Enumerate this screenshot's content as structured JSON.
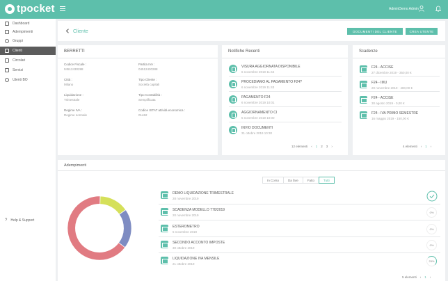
{
  "app": {
    "logo": "tpocket",
    "user": "AdminDemo Admin"
  },
  "sidebar": {
    "items": [
      {
        "label": "Dashboard"
      },
      {
        "label": "Adempimenti"
      },
      {
        "label": "Gruppi"
      },
      {
        "label": "Clienti",
        "active": true
      },
      {
        "label": "Circolari"
      },
      {
        "label": "Servizi"
      },
      {
        "label": "Utenti BO"
      }
    ],
    "help": "Help & Support"
  },
  "header": {
    "title": "Cliente",
    "btn_docs": "DOCUMENTI DEL CLIENTE",
    "btn_user": "CREA UTENTE"
  },
  "client": {
    "name": "BERRETTI",
    "fields": [
      {
        "label": "Codice Fiscale :",
        "value": "04512430288"
      },
      {
        "label": "Partita IVA :",
        "value": "04512430288"
      },
      {
        "label": "Città :",
        "value": "Milano"
      },
      {
        "label": "Tipo Cliente :",
        "value": "Società capitali"
      },
      {
        "label": "Liquidazione :",
        "value": "Trimestrale"
      },
      {
        "label": "Tipo Contabilità :",
        "value": "Semplificata"
      },
      {
        "label": "Regime IVA :",
        "value": "Regime normale"
      },
      {
        "label": "Codice ISTAT attività economica :",
        "value": "01462"
      }
    ]
  },
  "notifications": {
    "title": "Notifiche Recenti",
    "items": [
      {
        "title": "VISURA AGGIORNATA DISPONIBILE",
        "date": "6 novembre 2019 11:44"
      },
      {
        "title": "PROCEDIAMO AL PAGAMENTO F24?",
        "date": "6 novembre 2019 11:43"
      },
      {
        "title": "PAGAMENTO F24",
        "date": "6 novembre 2019 10:01"
      },
      {
        "title": "AGGIORNAMENTO CI",
        "date": "5 novembre 2019 10:00"
      },
      {
        "title": "INVIO DOCUMENTI",
        "date": "31 ottobre 2019 10:30"
      }
    ],
    "count": "12 elementi",
    "pages": [
      "1",
      "2",
      "3"
    ]
  },
  "deadlines": {
    "title": "Scadenze",
    "items": [
      {
        "title": "F24 - ACCISE",
        "sub": "27 dicembre 2019 - 350,00 €"
      },
      {
        "title": "F24 - IMU",
        "sub": "20 novembre 2019 - 480,00 €"
      },
      {
        "title": "F24 - ACCISE",
        "sub": "30 agosto 2019 - 0,00 €"
      },
      {
        "title": "F24 - IVA PRIMO SEMESTRE",
        "sub": "16 maggio 2019 - 150,00 €"
      }
    ],
    "count": "4 elementi",
    "page": "1"
  },
  "obligations": {
    "title": "Adempimenti",
    "filters": [
      "In Corso",
      "Da fare",
      "Fatto",
      "Tutti"
    ],
    "active_filter": "Tutti",
    "items": [
      {
        "title": "DEMO LIQUIDAZIONE TRIMESTRALE",
        "date": "28 novembre 2019",
        "status": "done"
      },
      {
        "title": "SCADENZA MODELLO 770/2019",
        "date": "20 novembre 2019",
        "progress": "0%"
      },
      {
        "title": "ESTEROMETRO",
        "date": "5 novembre 2019",
        "progress": "0%"
      },
      {
        "title": "SECONDO ACCONTO IMPOSTE",
        "date": "30 ottobre 2019",
        "progress": "0%"
      },
      {
        "title": "LIQUIDAZIONE IVA MENSILE",
        "date": "21 ottobre 2019",
        "progress": "25%"
      }
    ],
    "count": "5 elementi",
    "page": "1",
    "donut": [
      {
        "name": "done",
        "fraction": 0.15,
        "color": "#d5e05a"
      },
      {
        "name": "in-progress",
        "fraction": 0.2,
        "color": "#7e8cc2"
      },
      {
        "name": "todo",
        "fraction": 0.65,
        "color": "#e17b82"
      }
    ]
  }
}
